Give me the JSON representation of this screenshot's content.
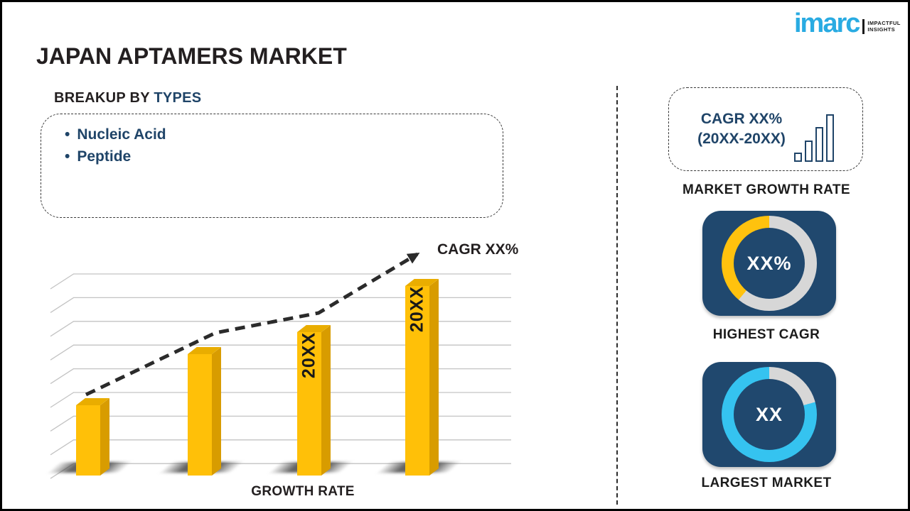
{
  "header": {
    "title": "JAPAN APTAMERS MARKET",
    "logo": {
      "brand": "imarc",
      "brand_color": "#29ABE2",
      "tagline_line1": "IMPACTFUL",
      "tagline_line2": "INSIGHTS"
    }
  },
  "breakup": {
    "heading_prefix": "BREAKUP BY ",
    "heading_accent": "TYPES",
    "accent_color": "#1F4468",
    "items": [
      "Nucleic Acid",
      "Peptide"
    ]
  },
  "chart_data": [
    {
      "type": "bar",
      "title": "",
      "xlabel": "GROWTH RATE",
      "ylabel": "",
      "categories": [
        "",
        "",
        "20XX",
        "20XX"
      ],
      "values": [
        99,
        171,
        202,
        267
      ],
      "values_note": "placeholder chart; values are relative bar heights read from pixels",
      "annotation": "CAGR XX%",
      "bar_color": "#FFC008",
      "trend": "rising dashed arrow",
      "grid": true,
      "legend": false
    },
    {
      "type": "pie",
      "donut": true,
      "title": "HIGHEST CAGR",
      "center_label": "XX%",
      "slices": [
        {
          "name": "rest",
          "value": 61.1,
          "color": "#D7D7D7"
        },
        {
          "name": "highlight",
          "value": 38.9,
          "color": "#FFC20E"
        }
      ]
    },
    {
      "type": "pie",
      "donut": true,
      "title": "LARGEST MARKET",
      "center_label": "XX",
      "slices": [
        {
          "name": "rest",
          "value": 20.8,
          "color": "#D7D7D7"
        },
        {
          "name": "highlight",
          "value": 79.2,
          "color": "#35C3F0"
        }
      ]
    }
  ],
  "sidebar": {
    "growth_card": {
      "line1": "CAGR XX%",
      "line2": "(20XX-20XX)",
      "icon_bars": [
        13,
        30,
        49,
        67
      ],
      "label": "MARKET GROWTH RATE"
    },
    "card_color": "#20486E"
  }
}
